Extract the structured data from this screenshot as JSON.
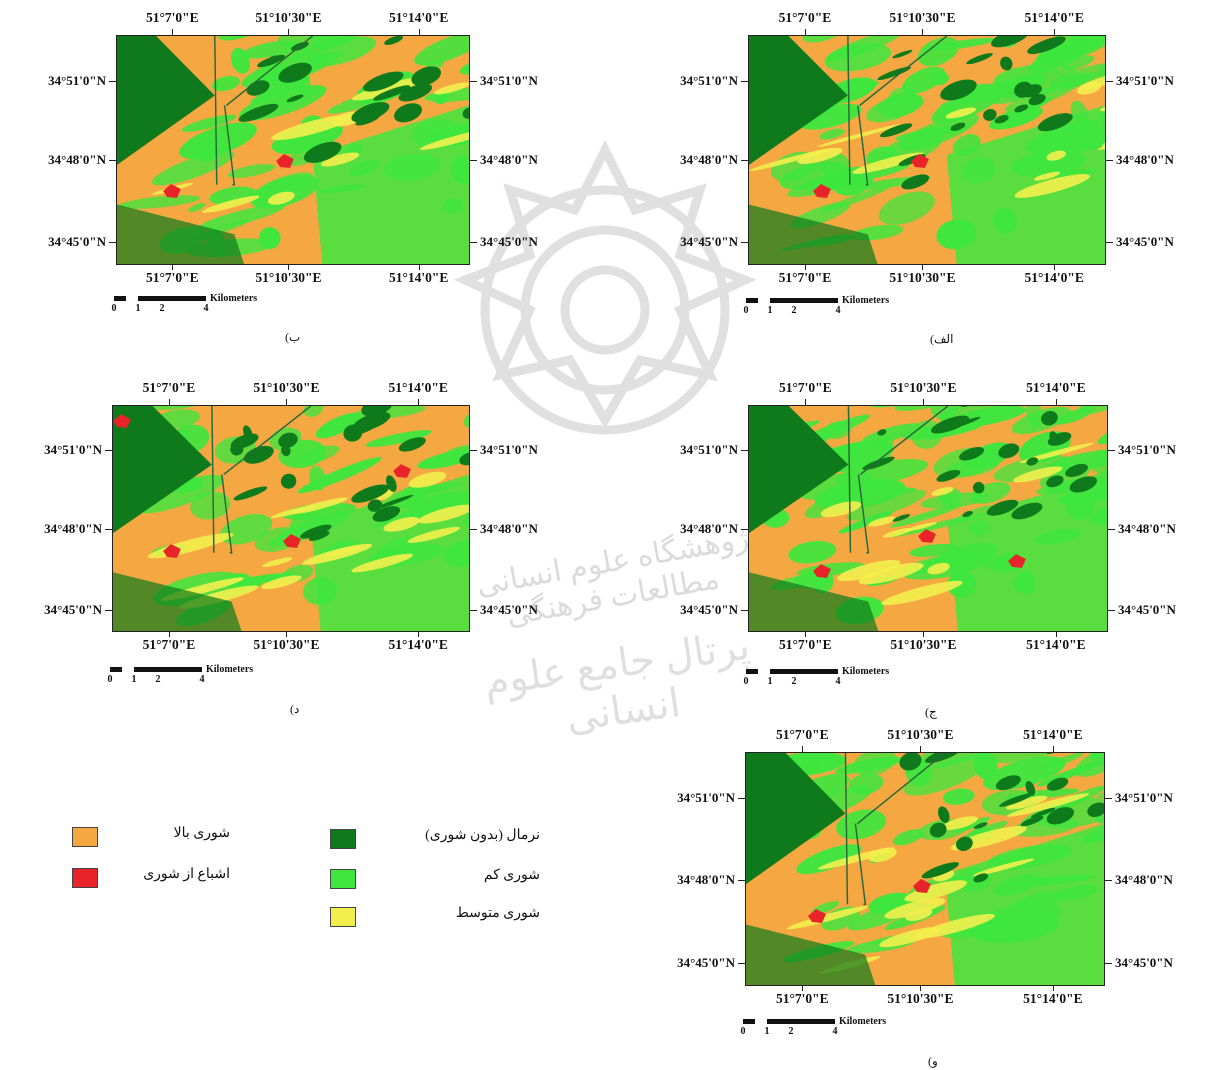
{
  "colors": {
    "normal": "#0e7a1b",
    "low_salinity": "#3ee63e",
    "medium_salinity": "#f2ef4c",
    "high_salinity": "#f5a742",
    "saturated_salinity": "#e8242a"
  },
  "maps": [
    {
      "caption": "ب)",
      "top_ticks": [
        "51°7'0\"E",
        "51°10'30\"E",
        "51°14'0\"E"
      ],
      "bottom_ticks": [
        "51°7'0\"E",
        "51°10'30\"E",
        "51°14'0\"E"
      ],
      "left_ticks": [
        "34°51'0\"N",
        "34°48'0\"N",
        "34°45'0\"N"
      ],
      "right_ticks": [
        "34°51'0\"N",
        "34°48'0\"N",
        "34°45'0\"N"
      ],
      "scale_unit": "Kilometers",
      "scale_numbers": [
        "0",
        "1",
        "2",
        "4"
      ]
    },
    {
      "caption": "الف)",
      "top_ticks": [
        "51°7'0\"E",
        "51°10'30\"E",
        "51°14'0\"E"
      ],
      "bottom_ticks": [
        "51°7'0\"E",
        "51°10'30\"E",
        "51°14'0\"E"
      ],
      "left_ticks": [
        "34°51'0\"N",
        "34°48'0\"N",
        "34°45'0\"N"
      ],
      "right_ticks": [
        "34°51'0\"N",
        "34°48'0\"N",
        "34°45'0\"N"
      ],
      "scale_unit": "Kilometers",
      "scale_numbers": [
        "0",
        "1",
        "2",
        "4"
      ]
    },
    {
      "caption": "د)",
      "top_ticks": [
        "51°7'0\"E",
        "51°10'30\"E",
        "51°14'0\"E"
      ],
      "bottom_ticks": [
        "51°7'0\"E",
        "51°10'30\"E",
        "51°14'0\"E"
      ],
      "left_ticks": [
        "34°51'0\"N",
        "34°48'0\"N",
        "34°45'0\"N"
      ],
      "right_ticks": [
        "34°51'0\"N",
        "34°48'0\"N",
        "34°45'0\"N"
      ],
      "scale_unit": "Kilometers",
      "scale_numbers": [
        "0",
        "1",
        "2",
        "4"
      ]
    },
    {
      "caption": "ج)",
      "top_ticks": [
        "51°7'0\"E",
        "51°10'30\"E",
        "51°14'0\"E"
      ],
      "bottom_ticks": [
        "51°7'0\"E",
        "51°10'30\"E",
        "51°14'0\"E"
      ],
      "left_ticks": [
        "34°51'0\"N",
        "34°48'0\"N",
        "34°45'0\"N"
      ],
      "right_ticks": [
        "34°51'0\"N",
        "34°48'0\"N",
        "34°45'0\"N"
      ],
      "scale_unit": "Kilometers",
      "scale_numbers": [
        "0",
        "1",
        "2",
        "4"
      ]
    },
    {
      "caption": "و)",
      "top_ticks": [
        "51°7'0\"E",
        "51°10'30\"E",
        "51°14'0\"E"
      ],
      "bottom_ticks": [
        "51°7'0\"E",
        "51°10'30\"E",
        "51°14'0\"E"
      ],
      "left_ticks": [
        "34°51'0\"N",
        "34°48'0\"N",
        "34°45'0\"N"
      ],
      "right_ticks": [
        "34°51'0\"N",
        "34°48'0\"N",
        "34°45'0\"N"
      ],
      "scale_unit": "Kilometers",
      "scale_numbers": [
        "0",
        "1",
        "2",
        "4"
      ]
    }
  ],
  "legend": {
    "high_salinity": "شوری بالا",
    "saturated_salinity": "اشباع از شوری",
    "normal": "نرمال (بدون شوری)",
    "low_salinity": "شوری کم",
    "medium_salinity": "شوری متوسط"
  },
  "watermark": {
    "line1": "پژوهشگاه علوم انسانی و مطالعات فرهنگی",
    "line2": "پرتال جامع علوم انسانی"
  }
}
